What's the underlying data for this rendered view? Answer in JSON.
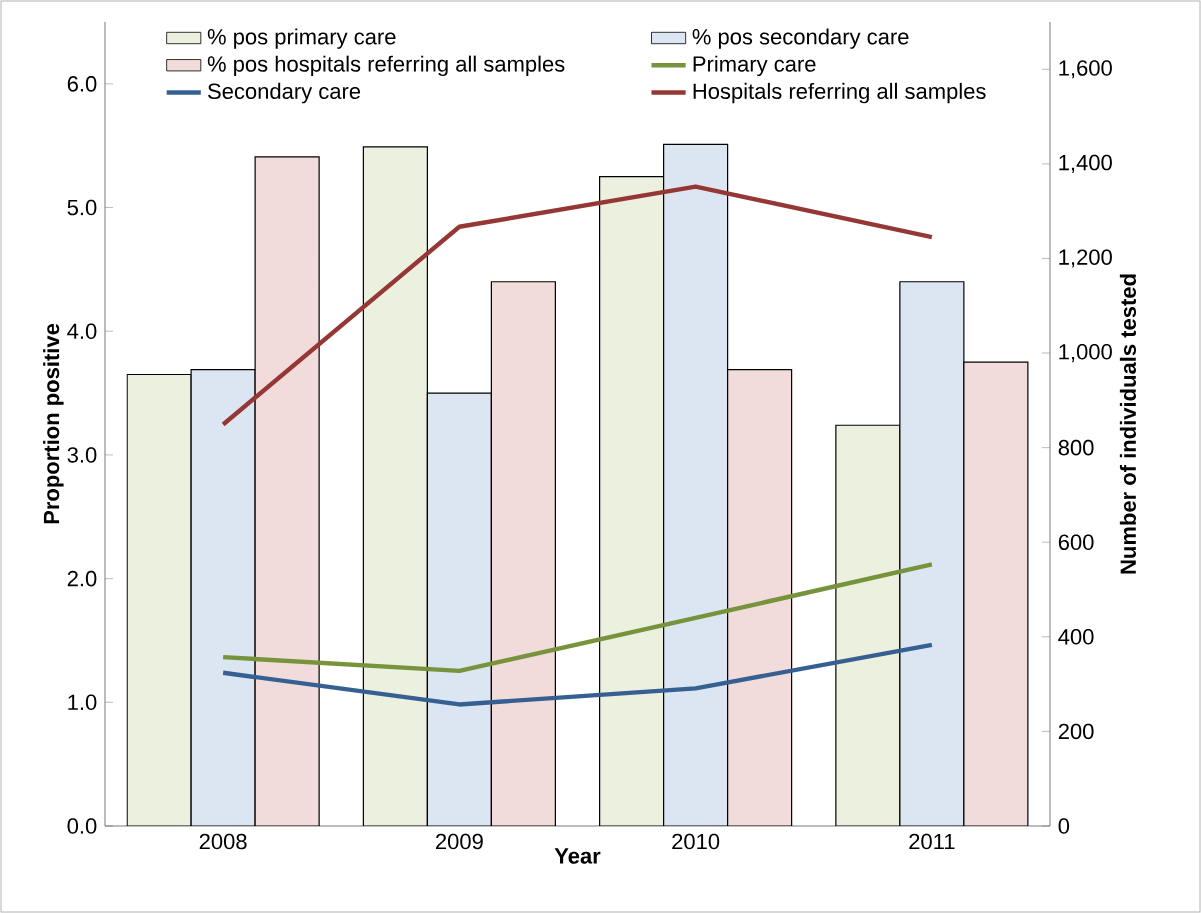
{
  "chart_data": {
    "type": "bar",
    "xlabel": "Year",
    "ylabel": "Proportion positive",
    "y2label": "Number of individuals tested",
    "categories": [
      "2008",
      "2009",
      "2010",
      "2011"
    ],
    "series": [
      {
        "name": "% pos primary care",
        "type": "bar",
        "color": "#ebf1de",
        "values": [
          3.65,
          5.49,
          5.25,
          3.24
        ]
      },
      {
        "name": "% pos secondary care",
        "type": "bar",
        "color": "#dce6f2",
        "values": [
          3.69,
          3.5,
          5.51,
          4.4
        ]
      },
      {
        "name": "% pos hospitals referring all samples",
        "type": "bar",
        "color": "#f2dcdb",
        "values": [
          5.41,
          4.4,
          3.69,
          3.75
        ]
      },
      {
        "name": "Primary care",
        "type": "line",
        "axis": "y2",
        "color": "#77933c",
        "values": [
          357,
          328,
          440,
          553
        ]
      },
      {
        "name": "Secondary care",
        "type": "line",
        "axis": "y2",
        "color": "#376092",
        "values": [
          324,
          257,
          291,
          383
        ]
      },
      {
        "name": "Hospitals referring all samples",
        "type": "line",
        "axis": "y2",
        "color": "#953735",
        "values": [
          849,
          1267,
          1352,
          1245
        ]
      }
    ],
    "ylim": [
      0,
      6.5
    ],
    "yticks": [
      {
        "value": 0,
        "label": "0.0"
      },
      {
        "value": 1,
        "label": "1.0"
      },
      {
        "value": 2,
        "label": "2.0"
      },
      {
        "value": 3,
        "label": "3.0"
      },
      {
        "value": 4,
        "label": "4.0"
      },
      {
        "value": 5,
        "label": "5.0"
      },
      {
        "value": 6,
        "label": "6.0"
      }
    ],
    "y2lim": [
      0,
      1700
    ],
    "y2ticks": [
      0,
      200,
      400,
      600,
      800,
      {
        "value": 1000,
        "label": "1,000"
      },
      {
        "value": 1200,
        "label": "1,200"
      },
      {
        "value": 1400,
        "label": "1,400"
      },
      {
        "value": 1600,
        "label": "1,600"
      }
    ],
    "legend": "top",
    "grid": false,
    "marker": "none",
    "line_style": "solid"
  }
}
